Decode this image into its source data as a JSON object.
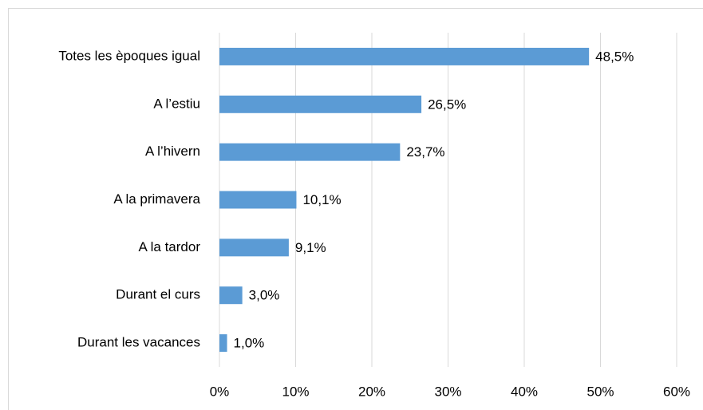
{
  "chart_data": {
    "type": "bar",
    "orientation": "horizontal",
    "categories": [
      "Totes les èpoques igual",
      "A l’estiu",
      "A l’hivern",
      "A la primavera",
      "A la tardor",
      "Durant el curs",
      "Durant les vacances"
    ],
    "values": [
      48.5,
      26.5,
      23.7,
      10.1,
      9.1,
      3.0,
      1.0
    ],
    "value_labels": [
      "48,5%",
      "26,5%",
      "23,7%",
      "10,1%",
      "9,1%",
      "3,0%",
      "1,0%"
    ],
    "color": "#5b9bd5",
    "xlim": [
      0,
      60
    ],
    "xticks": [
      {
        "value": 0,
        "label": "0%"
      },
      {
        "value": 10,
        "label": "10%"
      },
      {
        "value": 20,
        "label": "20%"
      },
      {
        "value": 30,
        "label": "30%"
      },
      {
        "value": 40,
        "label": "40%"
      },
      {
        "value": 50,
        "label": "50%"
      },
      {
        "value": 60,
        "label": "60%"
      }
    ],
    "grid": true
  }
}
